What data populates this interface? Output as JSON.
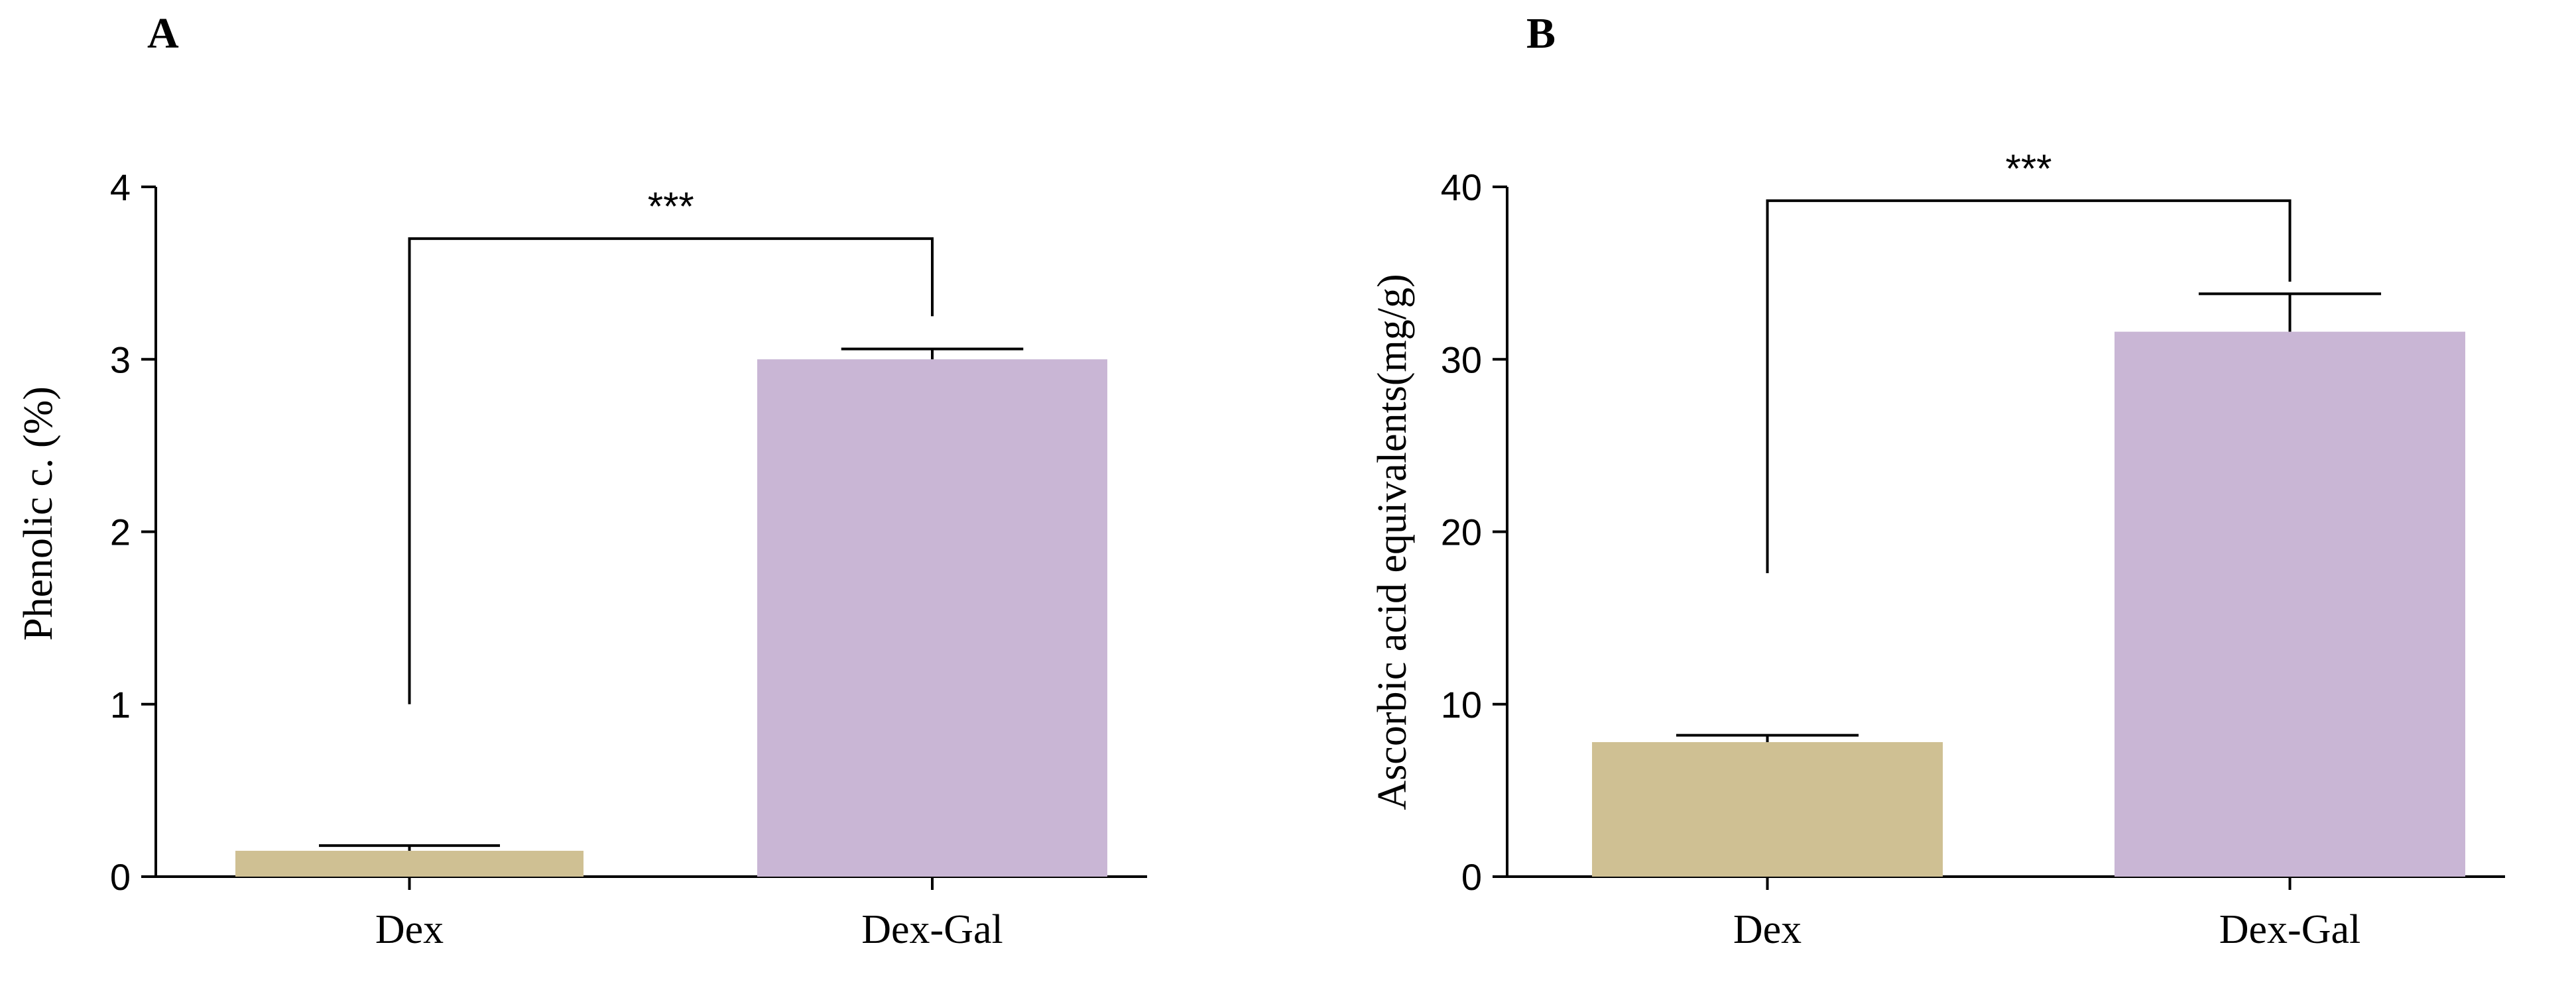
{
  "chart_data": [
    {
      "type": "bar",
      "panel": "A",
      "title": "",
      "xlabel": "",
      "ylabel": "Phenolic c. (%)",
      "ylim": [
        0,
        4
      ],
      "yticks": [
        0,
        1,
        2,
        3,
        4
      ],
      "categories": [
        "Dex",
        "Dex-Gal"
      ],
      "values": [
        0.15,
        3.0
      ],
      "errors": [
        0.03,
        0.06
      ],
      "colors": [
        "#cfc093",
        "#c9b6d5"
      ],
      "significance": {
        "label": "***",
        "from": 0,
        "to": 1,
        "bracket_y": 3.7,
        "left_drop_to": 1.0,
        "right_drop_to": 3.25
      }
    },
    {
      "type": "bar",
      "panel": "B",
      "title": "",
      "xlabel": "",
      "ylabel": "Ascorbic acid equivalents(mg/g)",
      "ylim": [
        0,
        40
      ],
      "yticks": [
        0,
        10,
        20,
        30,
        40
      ],
      "categories": [
        "Dex",
        "Dex-Gal"
      ],
      "values": [
        7.8,
        31.6
      ],
      "errors": [
        0.4,
        2.2
      ],
      "colors": [
        "#cfc093",
        "#c9b6d5"
      ],
      "significance": {
        "label": "***",
        "from": 0,
        "to": 1,
        "bracket_y": 39.2,
        "left_drop_to": 17.6,
        "right_drop_to": 34.5
      }
    }
  ]
}
